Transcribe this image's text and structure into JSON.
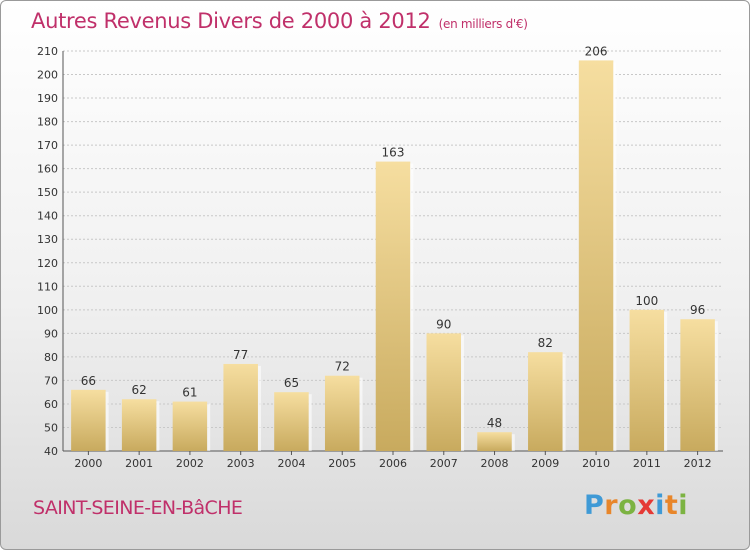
{
  "chart_data": {
    "type": "bar",
    "title": "Autres Revenus Divers de 2000 à 2012",
    "subtitle": "(en milliers d'€)",
    "categories": [
      "2000",
      "2001",
      "2002",
      "2003",
      "2004",
      "2005",
      "2006",
      "2007",
      "2008",
      "2009",
      "2010",
      "2011",
      "2012"
    ],
    "values": [
      66,
      62,
      61,
      77,
      65,
      72,
      163,
      90,
      48,
      82,
      206,
      100,
      96
    ],
    "ylim": [
      40,
      210
    ],
    "yticks": [
      40,
      50,
      60,
      70,
      80,
      90,
      100,
      110,
      120,
      130,
      140,
      150,
      160,
      170,
      180,
      190,
      200,
      210
    ],
    "grid": true,
    "bar_color": "#e0c27a",
    "xlabel": "",
    "ylabel": ""
  },
  "town_label": "SAINT-SEINE-EN-BâCHE",
  "logo": {
    "text": "Proxiti",
    "letters": [
      {
        "ch": "P",
        "color": "#3f9ad6"
      },
      {
        "ch": "r",
        "color": "#e8862a"
      },
      {
        "ch": "o",
        "color": "#7cb342"
      },
      {
        "ch": "x",
        "color": "#e53935"
      },
      {
        "ch": "i",
        "color": "#3f9ad6"
      },
      {
        "ch": "t",
        "color": "#e8862a"
      },
      {
        "ch": "i",
        "color": "#7cb342"
      }
    ]
  }
}
